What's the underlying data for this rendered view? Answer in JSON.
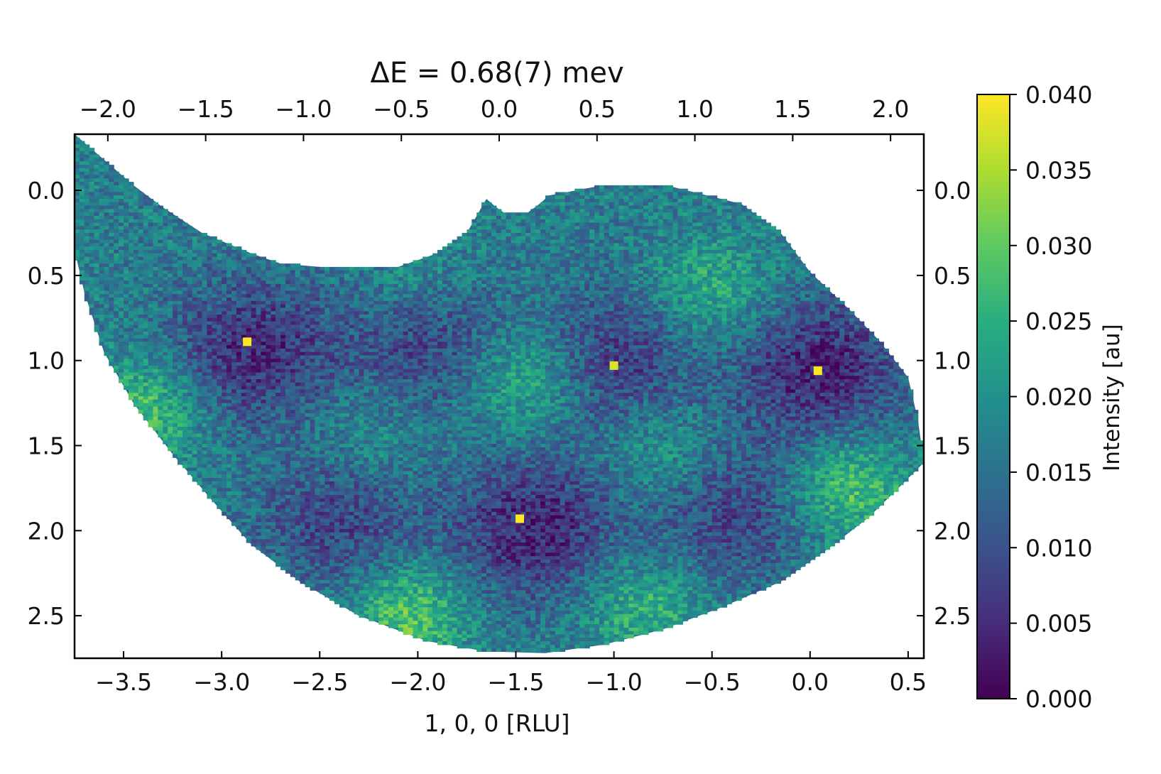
{
  "chart_data": {
    "type": "heatmap",
    "title": "ΔE = 0.68(7) mev",
    "xlabel": "1, 0, 0 [RLU]",
    "ylabel": "",
    "x_bottom": {
      "ticks": [
        -3.5,
        -3.0,
        -2.5,
        -2.0,
        -1.5,
        -1.0,
        -0.5,
        0.0,
        0.5
      ],
      "tick_labels": [
        "−3.5",
        "−3.0",
        "−2.5",
        "−2.0",
        "−1.5",
        "−1.0",
        "−0.5",
        "0.0",
        "0.5"
      ],
      "range": [
        -3.75,
        0.58
      ]
    },
    "x_top": {
      "ticks": [
        -2.0,
        -1.5,
        -1.0,
        -0.5,
        0.0,
        0.5,
        1.0,
        1.5,
        2.0
      ],
      "tick_labels": [
        "−2.0",
        "−1.5",
        "−1.0",
        "−0.5",
        "0.0",
        "0.5",
        "1.0",
        "1.5",
        "2.0"
      ],
      "range": [
        -2.17,
        2.17
      ]
    },
    "y": {
      "ticks": [
        0.0,
        0.5,
        1.0,
        1.5,
        2.0,
        2.5
      ],
      "tick_labels": [
        "0.0",
        "0.5",
        "1.0",
        "1.5",
        "2.0",
        "2.5"
      ],
      "range": [
        -0.33,
        2.75
      ],
      "inverted": true
    },
    "colorbar": {
      "label": "Intensity [au]",
      "colormap": "viridis",
      "range": [
        0.0,
        0.04
      ],
      "ticks": [
        0.0,
        0.005,
        0.01,
        0.015,
        0.02,
        0.025,
        0.03,
        0.035,
        0.04
      ],
      "tick_labels": [
        "0.000",
        "0.005",
        "0.010",
        "0.015",
        "0.020",
        "0.025",
        "0.030",
        "0.035",
        "0.040"
      ]
    },
    "intensity_minima": [
      {
        "x": -2.85,
        "y": 0.95,
        "value": 0.005
      },
      {
        "x": -1.95,
        "y": 0.9,
        "value": 0.008
      },
      {
        "x": -1.0,
        "y": 1.0,
        "value": 0.007
      },
      {
        "x": 0.05,
        "y": 1.05,
        "value": 0.004
      },
      {
        "x": -1.4,
        "y": 2.0,
        "value": 0.004
      },
      {
        "x": -2.4,
        "y": 1.95,
        "value": 0.008
      },
      {
        "x": -0.4,
        "y": 1.9,
        "value": 0.008
      }
    ],
    "intensity_maxima": [
      {
        "x": -3.4,
        "y": 1.3,
        "value": 0.03
      },
      {
        "x": -1.45,
        "y": 1.1,
        "value": 0.028
      },
      {
        "x": -2.0,
        "y": 0.5,
        "value": 0.022
      },
      {
        "x": -0.5,
        "y": 0.6,
        "value": 0.026
      },
      {
        "x": -2.05,
        "y": 2.5,
        "value": 0.031
      },
      {
        "x": -0.85,
        "y": 2.45,
        "value": 0.027
      },
      {
        "x": 0.2,
        "y": 1.75,
        "value": 0.03
      },
      {
        "x": -0.75,
        "y": 1.55,
        "value": 0.024
      },
      {
        "x": -2.25,
        "y": 1.45,
        "value": 0.022
      }
    ],
    "bright_spots": [
      {
        "x": -2.87,
        "y": 0.89,
        "value": 0.04
      },
      {
        "x": -1.48,
        "y": 1.93,
        "value": 0.04
      },
      {
        "x": -1.0,
        "y": 1.03,
        "value": 0.038
      },
      {
        "x": 0.04,
        "y": 1.06,
        "value": 0.04
      }
    ],
    "base_level": 0.017
  }
}
